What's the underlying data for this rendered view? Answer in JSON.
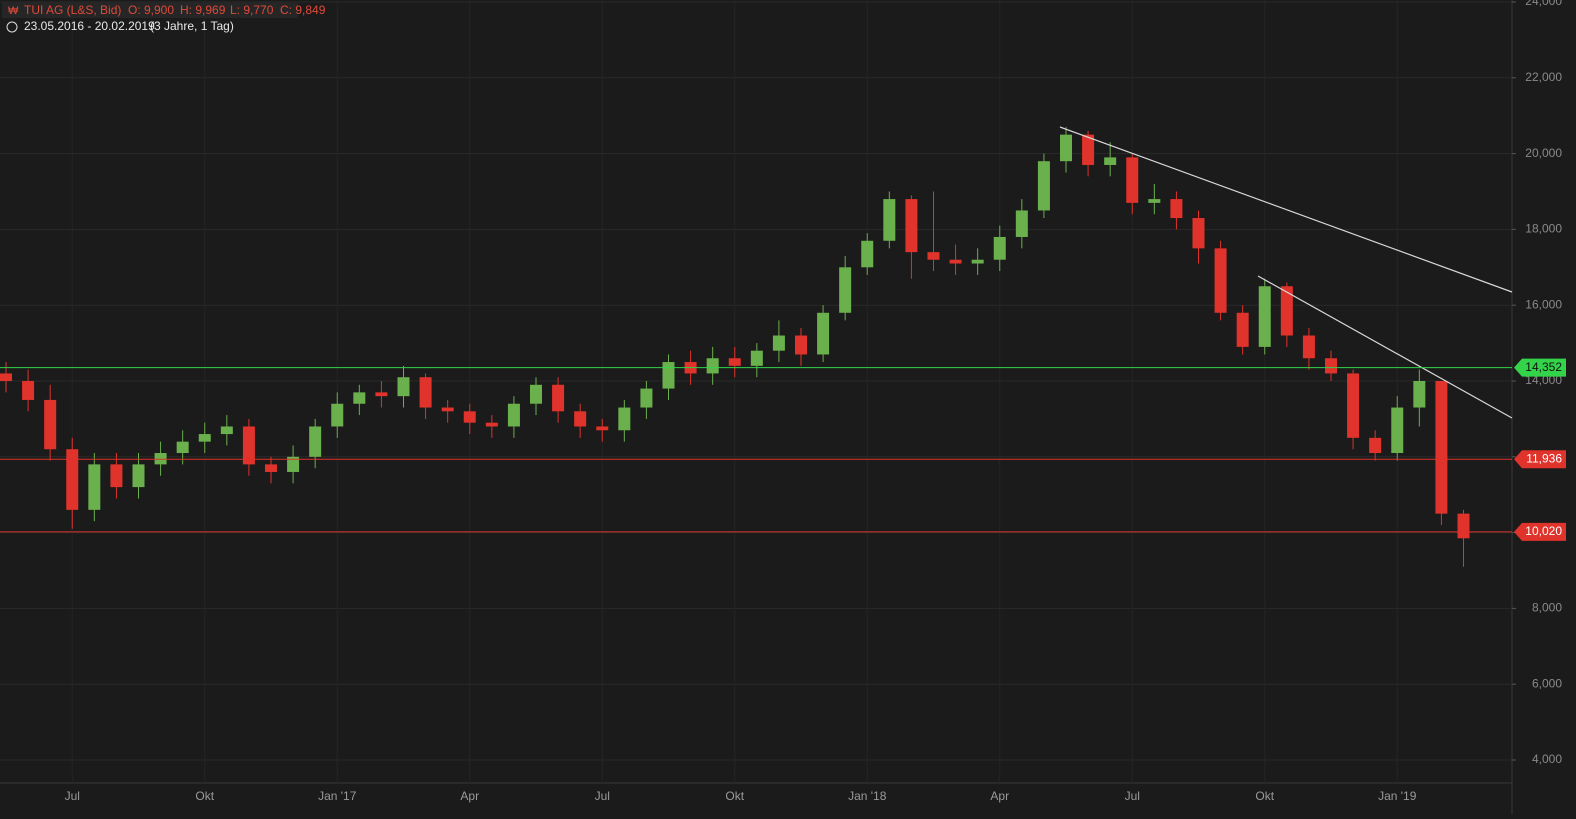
{
  "header": {
    "instrument": "TUI AG (L&S, Bid)",
    "o": "O: 9,900",
    "h": "H: 9,969",
    "l": "L: 9,770",
    "c": "C: 9,849",
    "range": "23.05.2016 - 20.02.2019",
    "span": "(3 Jahre, 1 Tag)"
  },
  "chart_data": {
    "type": "candlestick",
    "up_color": "#6ab04c",
    "down_color": "#e0332b",
    "grid": true,
    "categories": [
      null,
      null,
      null,
      "Jul",
      null,
      null,
      null,
      null,
      null,
      "Okt",
      null,
      null,
      null,
      null,
      null,
      "Jan '17",
      null,
      null,
      null,
      null,
      null,
      "Apr",
      null,
      null,
      null,
      null,
      null,
      "Jul",
      null,
      null,
      null,
      null,
      null,
      "Okt",
      null,
      null,
      null,
      null,
      null,
      "Jan '18",
      null,
      null,
      null,
      null,
      null,
      "Apr",
      null,
      null,
      null,
      null,
      null,
      "Jul",
      null,
      null,
      null,
      null,
      null,
      "Okt",
      null,
      null,
      null,
      null,
      null,
      "Jan '19",
      null,
      null,
      null
    ],
    "open": [
      14200,
      14000,
      13500,
      12200,
      10600,
      11800,
      11200,
      11800,
      12100,
      12400,
      12600,
      12800,
      11800,
      11600,
      12000,
      12800,
      13400,
      13700,
      13600,
      14100,
      13300,
      13200,
      12900,
      12800,
      13400,
      13900,
      13200,
      12800,
      12700,
      13300,
      13800,
      14500,
      14200,
      14600,
      14400,
      14800,
      15200,
      14700,
      15800,
      17000,
      17700,
      18800,
      17400,
      17200,
      17100,
      17200,
      17800,
      18500,
      19800,
      20500,
      19700,
      19900,
      18700,
      18800,
      18300,
      17500,
      15800,
      14900,
      16500,
      15200,
      14600,
      14200,
      12500,
      12100,
      13300,
      14000,
      10500
    ],
    "high": [
      14500,
      14300,
      13900,
      12500,
      12100,
      12100,
      12100,
      12400,
      12700,
      12900,
      13100,
      13000,
      12000,
      12300,
      13000,
      13700,
      13900,
      14000,
      14400,
      14200,
      13500,
      13400,
      13100,
      13600,
      14100,
      14100,
      13400,
      13000,
      13500,
      14000,
      14700,
      14800,
      14900,
      14900,
      15000,
      15600,
      15400,
      16000,
      17300,
      17900,
      19000,
      18900,
      19000,
      17600,
      17500,
      18100,
      18800,
      20000,
      20700,
      20600,
      20300,
      20000,
      19200,
      19000,
      18500,
      17700,
      16000,
      16700,
      16600,
      15400,
      14800,
      14300,
      12700,
      13600,
      14300,
      14000,
      10600
    ],
    "low": [
      13700,
      13200,
      11900,
      10100,
      10300,
      10900,
      10900,
      11500,
      11800,
      12100,
      12300,
      11500,
      11300,
      11300,
      11700,
      12500,
      13100,
      13300,
      13300,
      13000,
      12900,
      12600,
      12500,
      12500,
      13100,
      12900,
      12500,
      12400,
      12400,
      13000,
      13500,
      13900,
      13900,
      14100,
      14100,
      14500,
      14400,
      14500,
      15600,
      16800,
      17500,
      16700,
      16900,
      16800,
      16800,
      16900,
      17500,
      18300,
      19500,
      19400,
      19400,
      18400,
      18400,
      18000,
      17100,
      15600,
      14700,
      14700,
      14900,
      14300,
      14000,
      12200,
      11900,
      11900,
      12800,
      10200,
      9100
    ],
    "close": [
      14000,
      13500,
      12200,
      10600,
      11800,
      11200,
      11800,
      12100,
      12400,
      12600,
      12800,
      11800,
      11600,
      12000,
      12800,
      13400,
      13700,
      13600,
      14100,
      13300,
      13200,
      12900,
      12800,
      13400,
      13900,
      13200,
      12800,
      12700,
      13300,
      13800,
      14500,
      14200,
      14600,
      14400,
      14800,
      15200,
      14700,
      15800,
      17000,
      17700,
      18800,
      17400,
      17200,
      17100,
      17200,
      17800,
      18500,
      19800,
      20500,
      19700,
      19900,
      18700,
      18800,
      18300,
      17500,
      15800,
      14900,
      16500,
      15200,
      14600,
      14200,
      12500,
      12100,
      13300,
      14000,
      10500,
      9850
    ],
    "ylim": [
      4000,
      24000
    ],
    "yticks": [
      {
        "value": 4000,
        "label": "4,000"
      },
      {
        "value": 6000,
        "label": "6,000"
      },
      {
        "value": 8000,
        "label": "8,000"
      },
      {
        "value": 10000,
        "label": "10,000"
      },
      {
        "value": 12000,
        "label": "12,000"
      },
      {
        "value": 14000,
        "label": "14,000"
      },
      {
        "value": 16000,
        "label": "16,000"
      },
      {
        "value": 18000,
        "label": "18,000"
      },
      {
        "value": 20000,
        "label": "20,000"
      },
      {
        "value": 22000,
        "label": "22,000"
      },
      {
        "value": 24000,
        "label": "24,000"
      }
    ],
    "levels": [
      {
        "value": 14352,
        "label": "14,352",
        "color": "#33d44a"
      },
      {
        "value": 11936,
        "label": "11,936",
        "color": "#e0332b"
      },
      {
        "value": 10020,
        "label": "10,020",
        "color": "#e0332b"
      }
    ]
  }
}
